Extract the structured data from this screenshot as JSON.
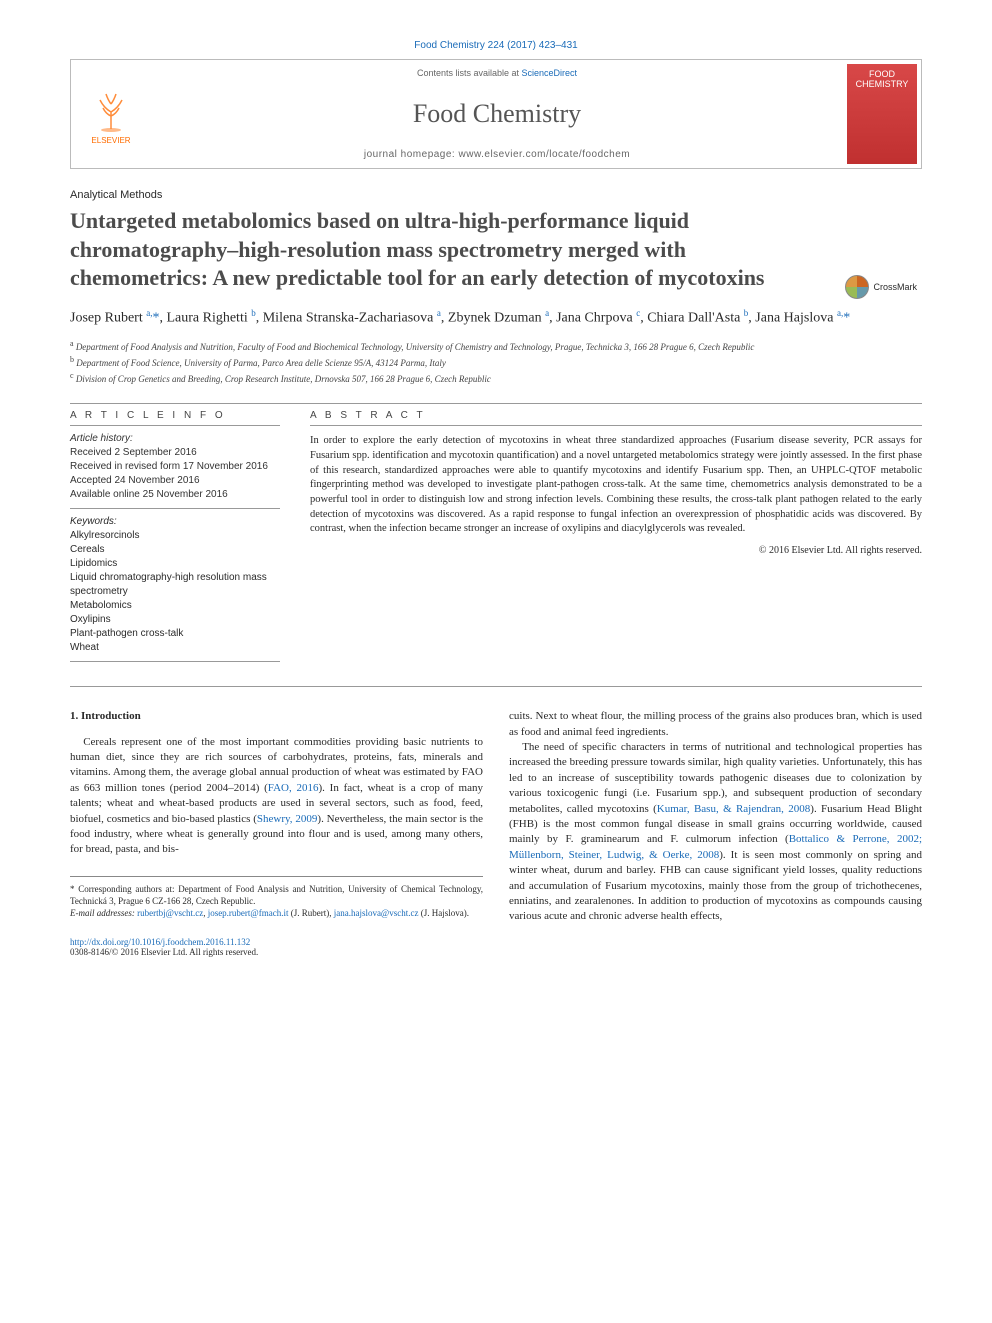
{
  "citation": "Food Chemistry 224 (2017) 423–431",
  "header": {
    "contents_prefix": "Contents lists available at ",
    "contents_link": "ScienceDirect",
    "journal": "Food Chemistry",
    "homepage_prefix": "journal homepage: ",
    "homepage_url": "www.elsevier.com/locate/foodchem",
    "publisher": "ELSEVIER",
    "cover_line1": "FOOD",
    "cover_line2": "CHEMISTRY"
  },
  "section_label": "Analytical Methods",
  "title": "Untargeted metabolomics based on ultra-high-performance liquid chromatography–high-resolution mass spectrometry merged with chemometrics: A new predictable tool for an early detection of mycotoxins",
  "crossmark": "CrossMark",
  "authors_html": "Josep Rubert <sup>a,</sup><span class='star'>*</span>, Laura Righetti <sup>b</sup>, Milena Stranska-Zachariasova <sup>a</sup>, Zbynek Dzuman <sup>a</sup>, Jana Chrpova <sup>c</sup>, Chiara Dall'Asta <sup>b</sup>, Jana Hajslova <sup>a,</sup><span class='star'>*</span>",
  "affiliations": {
    "a": "Department of Food Analysis and Nutrition, Faculty of Food and Biochemical Technology, University of Chemistry and Technology, Prague, Technicka 3, 166 28 Prague 6, Czech Republic",
    "b": "Department of Food Science, University of Parma, Parco Area delle Scienze 95/A, 43124 Parma, Italy",
    "c": "Division of Crop Genetics and Breeding, Crop Research Institute, Drnovska 507, 166 28 Prague 6, Czech Republic"
  },
  "article_info": {
    "heading": "A R T I C L E   I N F O",
    "history_label": "Article history:",
    "received": "Received 2 September 2016",
    "revised": "Received in revised form 17 November 2016",
    "accepted": "Accepted 24 November 2016",
    "online": "Available online 25 November 2016",
    "keywords_label": "Keywords:",
    "keywords": [
      "Alkylresorcinols",
      "Cereals",
      "Lipidomics",
      "Liquid chromatography-high resolution mass spectrometry",
      "Metabolomics",
      "Oxylipins",
      "Plant-pathogen cross-talk",
      "Wheat"
    ]
  },
  "abstract": {
    "heading": "A B S T R A C T",
    "body": "In order to explore the early detection of mycotoxins in wheat three standardized approaches (Fusarium disease severity, PCR assays for Fusarium spp. identification and mycotoxin quantification) and a novel untargeted metabolomics strategy were jointly assessed. In the first phase of this research, standardized approaches were able to quantify mycotoxins and identify Fusarium spp. Then, an UHPLC-QTOF metabolic fingerprinting method was developed to investigate plant-pathogen cross-talk. At the same time, chemometrics analysis demonstrated to be a powerful tool in order to distinguish low and strong infection levels. Combining these results, the cross-talk plant pathogen related to the early detection of mycotoxins was discovered. As a rapid response to fungal infection an overexpression of phosphatidic acids was discovered. By contrast, when the infection became stronger an increase of oxylipins and diacylglycerols was revealed.",
    "copyright": "© 2016 Elsevier Ltd. All rights reserved."
  },
  "body": {
    "heading": "1. Introduction",
    "col1_p1": "Cereals represent one of the most important commodities providing basic nutrients to human diet, since they are rich sources of carbohydrates, proteins, fats, minerals and vitamins. Among them, the average global annual production of wheat was estimated by FAO as 663 million tones (period 2004–2014) (",
    "col1_link1": "FAO, 2016",
    "col1_p1b": "). In fact, wheat is a crop of many talents; wheat and wheat-based products are used in several sectors, such as food, feed, biofuel, cosmetics and bio-based plastics (",
    "col1_link2": "Shewry, 2009",
    "col1_p1c": "). Nevertheless, the main sector is the food industry, where wheat is generally ground into flour and is used, among many others, for bread, pasta, and bis-",
    "col2_p1": "cuits. Next to wheat flour, the milling process of the grains also produces bran, which is used as food and animal feed ingredients.",
    "col2_p2a": "The need of specific characters in terms of nutritional and technological properties has increased the breeding pressure towards similar, high quality varieties. Unfortunately, this has led to an increase of susceptibility towards pathogenic diseases due to colonization by various toxicogenic fungi (i.e. Fusarium spp.), and subsequent production of secondary metabolites, called mycotoxins (",
    "col2_link1": "Kumar, Basu, & Rajendran, 2008",
    "col2_p2b": "). Fusarium Head Blight (FHB) is the most common fungal disease in small grains occurring worldwide, caused mainly by F. graminearum and F. culmorum infection (",
    "col2_link2": "Bottalico & Perrone, 2002; Müllenborn, Steiner, Ludwig, & Oerke, 2008",
    "col2_p2c": "). It is seen most commonly on spring and winter wheat, durum and barley. FHB can cause significant yield losses, quality reductions and accumulation of Fusarium mycotoxins, mainly those from the group of trichothecenes, enniatins, and zearalenones. In addition to production of mycotoxins as compounds causing various acute and chronic adverse health effects,"
  },
  "footer": {
    "corr_label": "* Corresponding authors at: Department of Food Analysis and Nutrition, University of Chemical Technology, Technická 3, Prague 6 CZ-166 28, Czech Republic.",
    "email_label": "E-mail addresses:",
    "email1": "rubertbj@vscht.cz",
    "email1_sep": ", ",
    "email2": "josep.rubert@fmach.it",
    "author1": " (J. Rubert), ",
    "email3": "jana.hajslova@vscht.cz",
    "author2": " (J. Hajslova)."
  },
  "doi": {
    "url": "http://dx.doi.org/10.1016/j.foodchem.2016.11.132",
    "issn": "0308-8146/© 2016 Elsevier Ltd. All rights reserved."
  },
  "colors": {
    "link": "#1a6bb8",
    "orange": "#ff6c00",
    "cover": "#c03030"
  }
}
